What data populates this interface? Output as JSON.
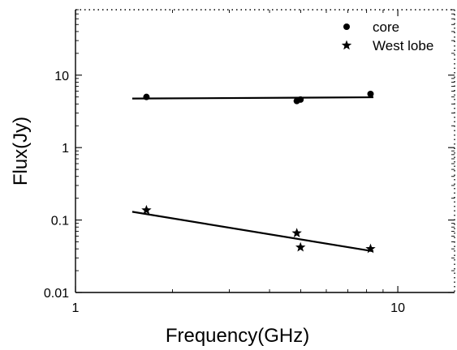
{
  "chart_data": {
    "type": "scatter",
    "title": "",
    "xlabel": "Frequency(GHz)",
    "ylabel": "Flux(Jy)",
    "xscale": "log",
    "yscale": "log",
    "xlim": [
      1,
      15
    ],
    "ylim": [
      0.01,
      80
    ],
    "x_ticks": [
      1,
      10
    ],
    "x_tick_labels": [
      "1",
      "10"
    ],
    "y_ticks": [
      0.01,
      0.1,
      1,
      10
    ],
    "y_tick_labels": [
      "0.01",
      "0.1",
      "1",
      "10"
    ],
    "grid": false,
    "legend_position": "top-right",
    "series": [
      {
        "name": "core",
        "marker": "circle",
        "color": "#000000",
        "points": [
          {
            "x": 1.66,
            "y": 5.0
          },
          {
            "x": 4.86,
            "y": 4.4
          },
          {
            "x": 4.99,
            "y": 4.6
          },
          {
            "x": 8.23,
            "y": 5.5
          }
        ],
        "fit_line": [
          {
            "x": 1.5,
            "y": 4.75
          },
          {
            "x": 8.4,
            "y": 4.95
          }
        ]
      },
      {
        "name": "West lobe",
        "marker": "star",
        "color": "#000000",
        "points": [
          {
            "x": 1.66,
            "y": 0.137
          },
          {
            "x": 4.86,
            "y": 0.066
          },
          {
            "x": 4.99,
            "y": 0.042
          },
          {
            "x": 8.23,
            "y": 0.04
          }
        ],
        "fit_line": [
          {
            "x": 1.5,
            "y": 0.13
          },
          {
            "x": 8.4,
            "y": 0.037
          }
        ]
      }
    ]
  }
}
